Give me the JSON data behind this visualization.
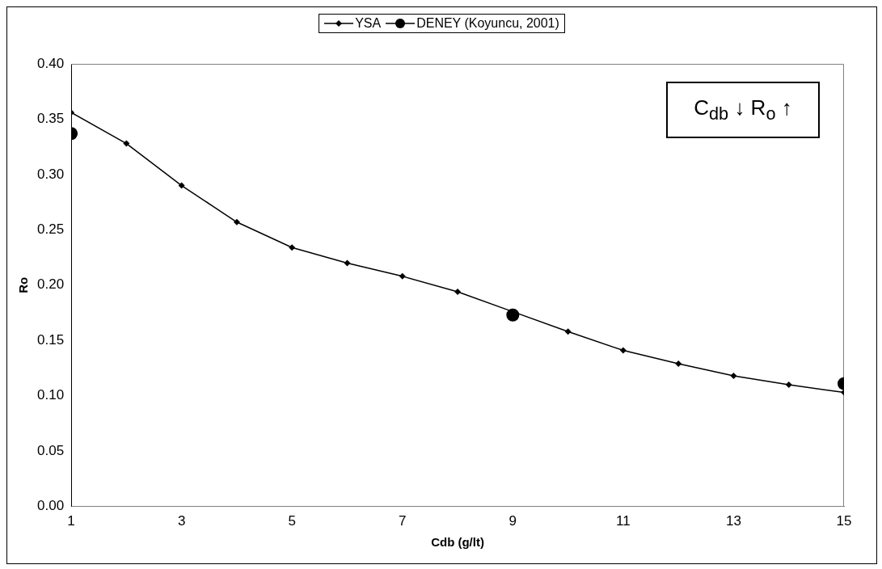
{
  "chart_data": {
    "type": "line",
    "xlabel": "Cdb (g/lt)",
    "ylabel": "Ro",
    "x": [
      1,
      2,
      3,
      4,
      5,
      6,
      7,
      8,
      9,
      10,
      11,
      12,
      13,
      14,
      15
    ],
    "series": [
      {
        "name": "YSA",
        "color": "#000000",
        "type": "line",
        "marker": "diamond",
        "values": [
          0.356,
          0.328,
          0.29,
          0.257,
          0.234,
          0.22,
          0.208,
          0.194,
          0.176,
          0.158,
          0.141,
          0.129,
          0.118,
          0.11,
          0.103
        ]
      },
      {
        "name": "DENEY (Koyuncu, 2001)",
        "color": "#000000",
        "type": "scatter",
        "marker": "circle",
        "x": [
          1,
          9,
          15
        ],
        "values": [
          0.337,
          0.173,
          0.111
        ]
      }
    ],
    "xlim": [
      1,
      15
    ],
    "xticks": [
      1,
      3,
      5,
      7,
      9,
      11,
      13,
      15
    ],
    "ylim": [
      0,
      0.4
    ],
    "yticks": [
      {
        "value": 0,
        "label": "0.00"
      },
      {
        "value": 0.05,
        "label": "0.05"
      },
      {
        "value": 0.1,
        "label": "0.10"
      },
      {
        "value": 0.15,
        "label": "0.15"
      },
      {
        "value": 0.2,
        "label": "0.20"
      },
      {
        "value": 0.25,
        "label": "0.25"
      },
      {
        "value": 0.3,
        "label": "0.30"
      },
      {
        "value": 0.35,
        "label": "0.35"
      },
      {
        "value": 0.4,
        "label": "0.40"
      }
    ],
    "annotations": [
      "C$_{db}$ ↓ R$_{o}$ ↑"
    ],
    "legend": "top",
    "grid": false
  }
}
